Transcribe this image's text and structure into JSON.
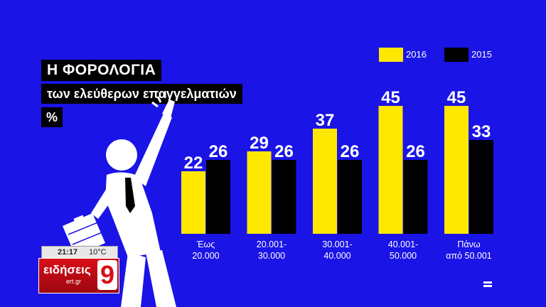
{
  "titles": {
    "line1": "Η ΦΟΡΟΛΟΓΙΑ",
    "line2": "των ελεύθερων επαγγελματιών",
    "line3": "%"
  },
  "legend": {
    "series_2016": "2016",
    "series_2015": "2015"
  },
  "colors": {
    "background": "#1a14e6",
    "series_2016": "#ffe800",
    "series_2015": "#000000",
    "figure": "#ffffff"
  },
  "news_box": {
    "time": "21:17",
    "temperature": "10°C",
    "brand": "ειδήσεις",
    "domain": "ert.gr",
    "channel_number": "9"
  },
  "icons": {
    "figure": "businessman-pointing-icon",
    "corner": "small-logo-icon"
  },
  "chart_data": {
    "type": "bar",
    "categories": [
      "Έως 20.000",
      "20.001- 30.000",
      "30.001- 40.000",
      "40.001- 50.000",
      "Πάνω από 50.001"
    ],
    "category_lines": [
      [
        "Έως",
        "20.000"
      ],
      [
        "20.001-",
        "30.000"
      ],
      [
        "30.001-",
        "40.000"
      ],
      [
        "40.001-",
        "50.000"
      ],
      [
        "Πάνω",
        "από 50.001"
      ]
    ],
    "series": [
      {
        "name": "2016",
        "values": [
          22,
          29,
          37,
          45,
          45
        ]
      },
      {
        "name": "2015",
        "values": [
          26,
          26,
          26,
          26,
          33
        ]
      }
    ],
    "title": "Η ΦΟΡΟΛΟΓΙΑ των ελεύθερων επαγγελματιών",
    "ylabel": "%",
    "xlabel": "",
    "ylim": [
      0,
      45
    ],
    "grid": false,
    "legend_position": "top-right"
  }
}
